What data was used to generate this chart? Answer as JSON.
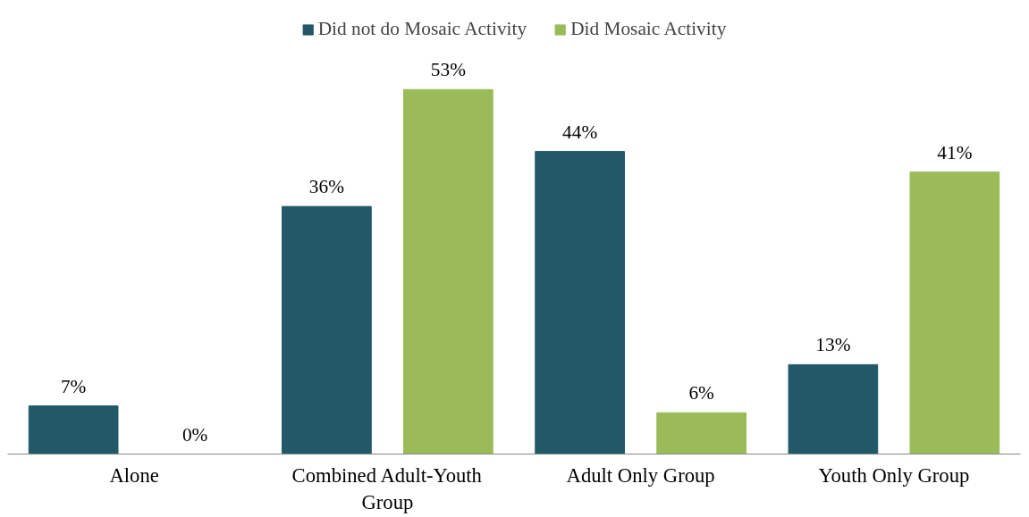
{
  "chart_data": {
    "type": "bar",
    "categories": [
      "Alone",
      "Combined Adult-Youth Group",
      "Adult Only Group",
      "Youth Only Group"
    ],
    "series": [
      {
        "name": "Did not do Mosaic Activity",
        "color": "#215968",
        "values": [
          7,
          36,
          44,
          13
        ],
        "value_labels": [
          "7%",
          "36%",
          "44%",
          "13%"
        ]
      },
      {
        "name": "Did Mosaic Activity",
        "color": "#9bbb59",
        "values": [
          0,
          53,
          6,
          41
        ],
        "value_labels": [
          "0%",
          "53%",
          "6%",
          "41%"
        ]
      }
    ],
    "legend": "top",
    "grid": false
  }
}
